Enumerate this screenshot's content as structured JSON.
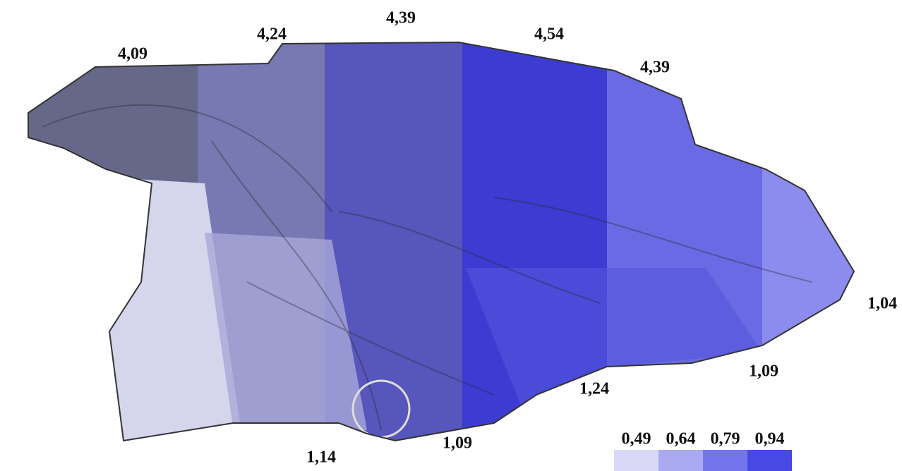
{
  "labels": [
    "4,09",
    "4,24",
    "4,39",
    "4,54",
    "4,39",
    "1,04",
    "1,09",
    "1,24",
    "1,09",
    "1,14"
  ],
  "legend": {
    "items": [
      {
        "label": "0,49",
        "color": "#d9d9f7"
      },
      {
        "label": "0,64",
        "color": "#a9a9f0"
      },
      {
        "label": "0,79",
        "color": "#7474ec"
      },
      {
        "label": "0,94",
        "color": "#4848e4"
      }
    ]
  }
}
